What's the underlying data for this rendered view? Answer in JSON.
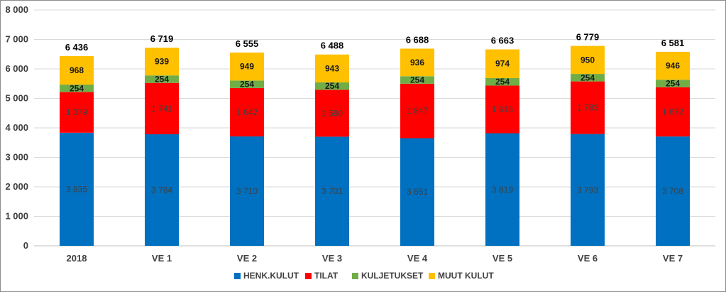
{
  "chart_data": {
    "type": "bar",
    "stacked": true,
    "categories": [
      "2018",
      "VE 1",
      "VE 2",
      "VE 3",
      "VE 4",
      "VE 5",
      "VE 6",
      "VE 7"
    ],
    "series": [
      {
        "name": "HENK.KULUT",
        "color": "#0070c0",
        "values": [
          3835,
          3784,
          3710,
          3701,
          3651,
          3819,
          3793,
          3708
        ],
        "labels": [
          "3 835",
          "3 784",
          "3 710",
          "3 701",
          "3 651",
          "3 819",
          "3 793",
          "3 708"
        ]
      },
      {
        "name": "TILAT",
        "color": "#ff0000",
        "values": [
          1379,
          1741,
          1642,
          1590,
          1847,
          1615,
          1783,
          1672
        ],
        "labels": [
          "1 379",
          "1 741",
          "1 642",
          "1 590",
          "1 847",
          "1 615",
          "1 783",
          "1 672"
        ]
      },
      {
        "name": "KULJETUKSET",
        "color": "#70ad47",
        "values": [
          254,
          254,
          254,
          254,
          254,
          254,
          254,
          254
        ],
        "labels": [
          "254",
          "254",
          "254",
          "254",
          "254",
          "254",
          "254",
          "254"
        ]
      },
      {
        "name": "MUUT KULUT",
        "color": "#ffc000",
        "values": [
          968,
          939,
          949,
          943,
          936,
          974,
          950,
          946
        ],
        "labels": [
          "968",
          "939",
          "949",
          "943",
          "936",
          "974",
          "950",
          "946"
        ]
      }
    ],
    "totals": [
      6436,
      6719,
      6555,
      6488,
      6688,
      6663,
      6779,
      6581
    ],
    "total_labels": [
      "6 436",
      "6 719",
      "6 555",
      "6 488",
      "6 688",
      "6 663",
      "6 779",
      "6 581"
    ],
    "ylim": [
      0,
      8000
    ],
    "yticks": [
      0,
      1000,
      2000,
      3000,
      4000,
      5000,
      6000,
      7000,
      8000
    ],
    "ytick_labels": [
      "0",
      "1 000",
      "2 000",
      "3 000",
      "4 000",
      "5 000",
      "6 000",
      "7 000",
      "8 000"
    ],
    "title": "",
    "xlabel": "",
    "ylabel": "",
    "grid": true,
    "gridline_color": "#d9d9d9",
    "legend_position": "bottom"
  }
}
